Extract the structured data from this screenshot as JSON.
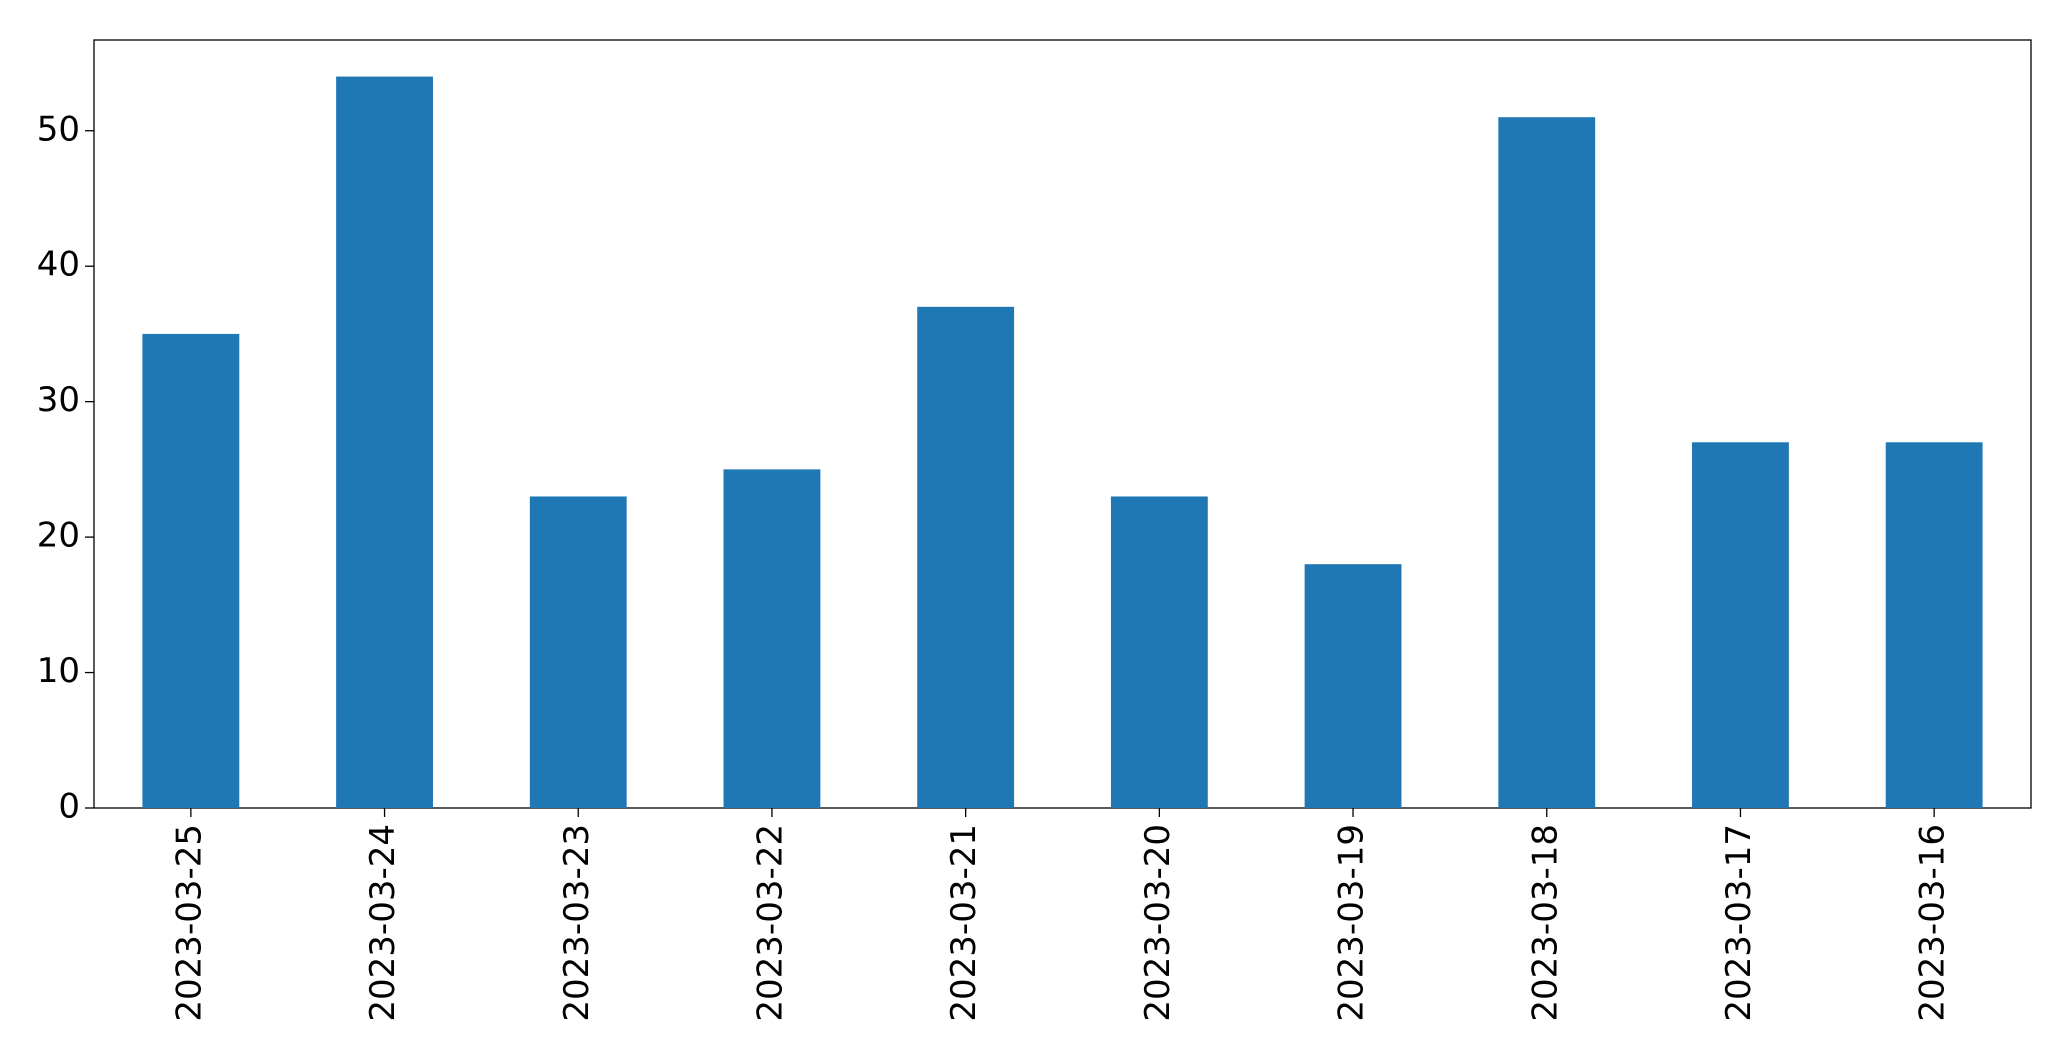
{
  "chart_data": {
    "type": "bar",
    "categories": [
      "2023-03-25",
      "2023-03-24",
      "2023-03-23",
      "2023-03-22",
      "2023-03-21",
      "2023-03-20",
      "2023-03-19",
      "2023-03-18",
      "2023-03-17",
      "2023-03-16"
    ],
    "values": [
      35,
      54,
      23,
      25,
      37,
      23,
      18,
      51,
      27,
      27
    ],
    "color": "#1f77b4",
    "ylim": [
      0,
      56.7
    ],
    "yticks": [
      0,
      10,
      20,
      30,
      40,
      50
    ],
    "grid": false
  }
}
